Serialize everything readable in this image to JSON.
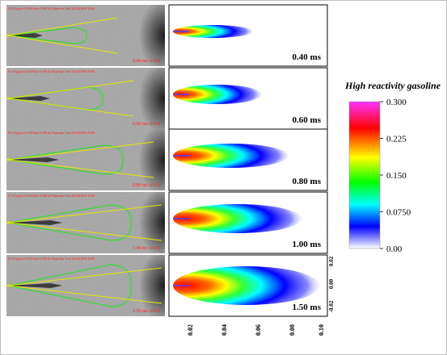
{
  "experiment_panels": [
    {
      "header": "F2.0 kg/m3/1500 bar/1000 K/Naphtha Test/20141009/1500",
      "time_label": "0.40 ms ASOI"
    },
    {
      "header": "F2.0 kg/m3/1500 bar/1000 K/Naphtha Test/20141009/1500",
      "time_label": "0.60 ms ASOI"
    },
    {
      "header": "F2.0 kg/m3/1500 bar/1000 K/Naphtha Test/20141009/1500",
      "time_label": "0.80 ms ASOI"
    },
    {
      "header": "F2.0 kg/m3/1500 bar/1000 K/Naphtha Test/20141009/1500",
      "time_label": "1.00 ms ASOI"
    },
    {
      "header": "F2.0 kg/m3/1500 bar/1000 K/Naphtha Test/20141009/1500",
      "time_label": "1.50 ms ASOI"
    }
  ],
  "simulation_panels": [
    {
      "time": "0.40 ms"
    },
    {
      "time": "0.60 ms"
    },
    {
      "time": "0.80 ms"
    },
    {
      "time": "1.00 ms"
    },
    {
      "time": "1.50 ms"
    }
  ],
  "colorbar": {
    "title": "High reactivity gasoline",
    "tick_labels": [
      "0.300",
      "0.225",
      "0.150",
      "0.0750",
      "0.00"
    ],
    "colors": [
      "#ff33ff",
      "#ff0000",
      "#ffff00",
      "#00ff00",
      "#00ffff",
      "#0000ff",
      "#ffffff"
    ]
  },
  "x_axis_ticks": [
    "0.02",
    "0.04",
    "0.06",
    "0.08",
    "0.10"
  ],
  "y_axis_ticks": [
    "0.02",
    "0.00",
    "-0.02"
  ]
}
